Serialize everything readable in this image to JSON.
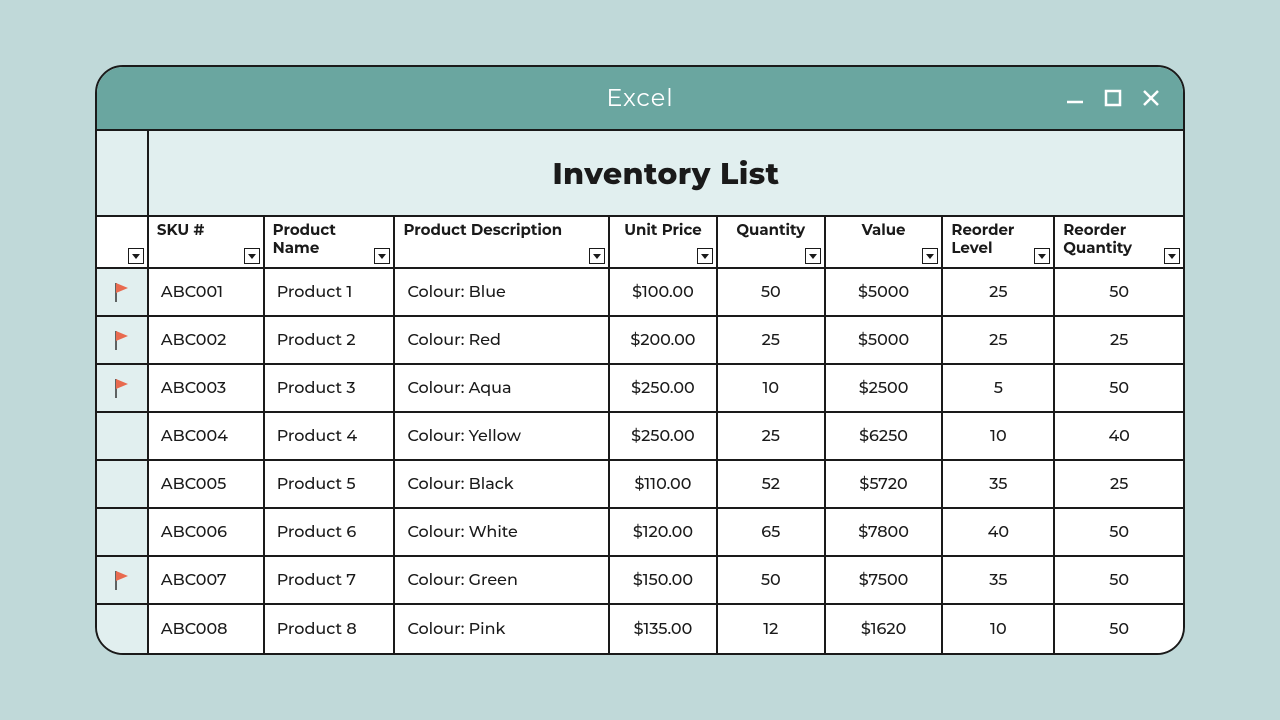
{
  "window": {
    "title": "Excel"
  },
  "sheet": {
    "title": "Inventory List"
  },
  "columns": {
    "sku": "SKU #",
    "name": "Product Name",
    "desc": "Product Description",
    "price": "Unit Price",
    "qty": "Quantity",
    "value": "Value",
    "reorder_level": "Reorder Level",
    "reorder_qty": "Reorder Quantity"
  },
  "colors": {
    "page_bg": "#c0d9d9",
    "titlebar_bg": "#6aa6a0",
    "titlebar_text": "#ffffff",
    "header_cell_bg": "#e1efef",
    "cell_bg": "#ffffff",
    "border": "#1a1a1a",
    "text": "#1a1a1a",
    "flag_fill": "#e86a4f",
    "flag_pole": "#333333"
  },
  "rows": [
    {
      "flagged": true,
      "sku": "ABC001",
      "name": "Product 1",
      "desc": "Colour: Blue",
      "price": "$100.00",
      "qty": "50",
      "value": "$5000",
      "reorder_level": "25",
      "reorder_qty": "50"
    },
    {
      "flagged": true,
      "sku": "ABC002",
      "name": "Product 2",
      "desc": "Colour: Red",
      "price": "$200.00",
      "qty": "25",
      "value": "$5000",
      "reorder_level": "25",
      "reorder_qty": "25"
    },
    {
      "flagged": true,
      "sku": "ABC003",
      "name": "Product 3",
      "desc": "Colour: Aqua",
      "price": "$250.00",
      "qty": "10",
      "value": "$2500",
      "reorder_level": "5",
      "reorder_qty": "50"
    },
    {
      "flagged": false,
      "sku": "ABC004",
      "name": "Product 4",
      "desc": "Colour: Yellow",
      "price": "$250.00",
      "qty": "25",
      "value": "$6250",
      "reorder_level": "10",
      "reorder_qty": "40"
    },
    {
      "flagged": false,
      "sku": "ABC005",
      "name": "Product 5",
      "desc": "Colour: Black",
      "price": "$110.00",
      "qty": "52",
      "value": "$5720",
      "reorder_level": "35",
      "reorder_qty": "25"
    },
    {
      "flagged": false,
      "sku": "ABC006",
      "name": "Product 6",
      "desc": "Colour: White",
      "price": "$120.00",
      "qty": "65",
      "value": "$7800",
      "reorder_level": "40",
      "reorder_qty": "50"
    },
    {
      "flagged": true,
      "sku": "ABC007",
      "name": "Product 7",
      "desc": "Colour: Green",
      "price": "$150.00",
      "qty": "50",
      "value": "$7500",
      "reorder_level": "35",
      "reorder_qty": "50"
    },
    {
      "flagged": false,
      "sku": "ABC008",
      "name": "Product 8",
      "desc": "Colour: Pink",
      "price": "$135.00",
      "qty": "12",
      "value": "$1620",
      "reorder_level": "10",
      "reorder_qty": "50"
    }
  ]
}
